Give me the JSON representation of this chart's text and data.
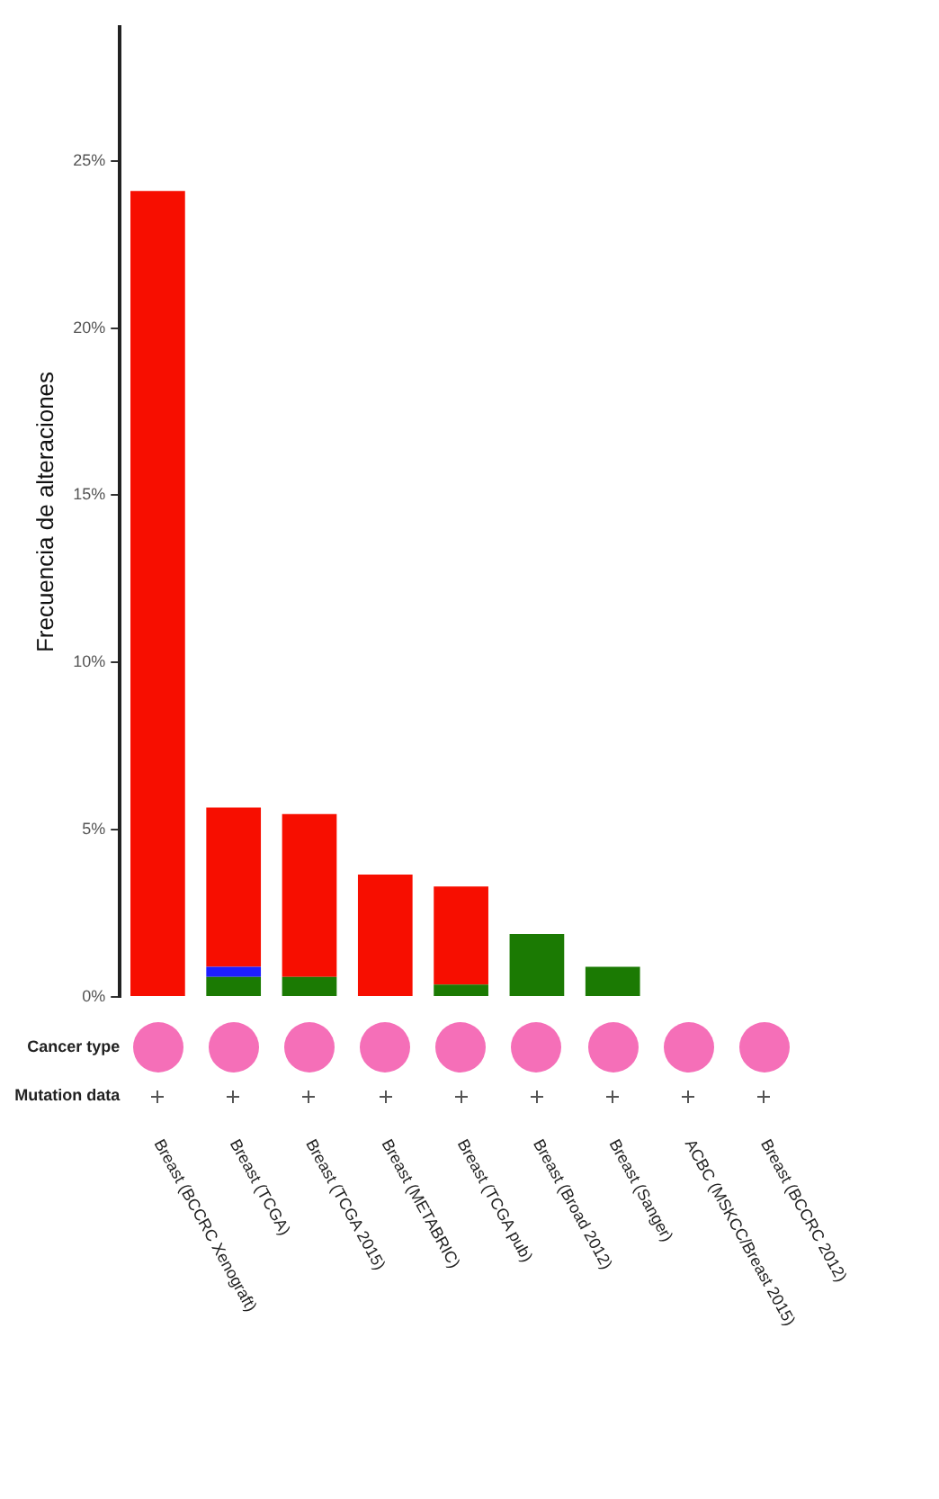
{
  "chart_data": {
    "type": "bar",
    "ylabel": "Frecuencia de alteraciones",
    "categories": [
      "Breast (BCCRC Xenograft)",
      "Breast (TCGA)",
      "Breast (TCGA 2015)",
      "Breast (METABRIC)",
      "Breast (TCGA pub)",
      "Breast (Broad 2012)",
      "Breast (Sanger)",
      "ACBC (MSKCC/Breast 2015)",
      "Breast (BCCRC 2012)"
    ],
    "series": [
      {
        "color": "#1b7a03",
        "values": [
          0,
          0.6,
          0.6,
          0,
          0.37,
          1.88,
          0.9,
          0,
          0
        ]
      },
      {
        "color": "#1e1eff",
        "values": [
          0,
          0.3,
          0,
          0,
          0,
          0,
          0,
          0,
          0
        ]
      },
      {
        "color": "#f70e00",
        "values": [
          24.1,
          4.76,
          4.87,
          3.66,
          2.93,
          0,
          0,
          0,
          0
        ]
      }
    ],
    "stacked": true,
    "ylim": [
      0,
      29
    ],
    "yticks": [
      {
        "value": 0,
        "label": "0%"
      },
      {
        "value": 5,
        "label": "5%"
      },
      {
        "value": 10,
        "label": "10%"
      },
      {
        "value": 15,
        "label": "15%"
      },
      {
        "value": 20,
        "label": "20%"
      },
      {
        "value": 25,
        "label": "25%"
      }
    ],
    "grid": false,
    "annotations": [
      "Cancer type",
      "Mutation data"
    ]
  }
}
